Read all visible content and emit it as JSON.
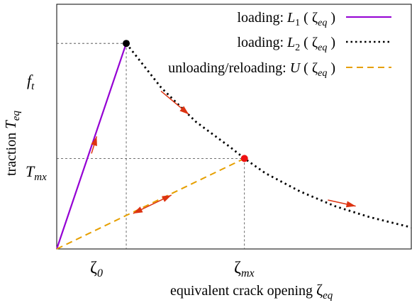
{
  "chart_data": {
    "type": "line",
    "xlabel": "equivalent crack opening",
    "xlabel_symbol": "ζ",
    "xlabel_sub": "eq",
    "ylabel": "traction",
    "ylabel_symbol": "T",
    "ylabel_sub": "eq",
    "x_ticks": [
      {
        "name": "zeta0",
        "x": 0.2,
        "sym": "ζ",
        "sub": "0"
      },
      {
        "name": "zetamx",
        "x": 0.54,
        "sym": "ζ",
        "sub": "mx"
      }
    ],
    "y_ticks": [
      {
        "name": "ft",
        "y": 0.84,
        "sym": "f",
        "sub": "t"
      },
      {
        "name": "tmx",
        "y": 0.37,
        "sym": "T",
        "sub": "mx"
      }
    ],
    "xlim": [
      0,
      1.02
    ],
    "ylim": [
      0,
      1.0
    ],
    "grid": false,
    "legend_position": "top-right",
    "series": [
      {
        "name": "loading: L1 ( ζeq )",
        "label_text": "loading: ",
        "sym": "L",
        "idx": "1",
        "arg": "ζ",
        "arg_sub": "eq",
        "style": "solid",
        "color": "#9400d3",
        "points": [
          [
            0,
            0
          ],
          [
            0.2,
            0.84
          ]
        ]
      },
      {
        "name": "loading: L2 ( ζeq )",
        "label_text": "loading: ",
        "sym": "L",
        "idx": "2",
        "arg": "ζ",
        "arg_sub": "eq",
        "style": "dotted",
        "color": "#000000",
        "points": [
          [
            0.2,
            0.84
          ],
          [
            0.3,
            0.66
          ],
          [
            0.4,
            0.52
          ],
          [
            0.5,
            0.415
          ],
          [
            0.54,
            0.37
          ],
          [
            0.6,
            0.31
          ],
          [
            0.7,
            0.235
          ],
          [
            0.8,
            0.175
          ],
          [
            0.9,
            0.13
          ],
          [
            1.0,
            0.095
          ],
          [
            1.02,
            0.088
          ]
        ]
      },
      {
        "name": "unloading/reloading: U ( ζeq )",
        "label_text": "unloading/reloading: ",
        "sym": "U",
        "idx": "",
        "arg": "ζ",
        "arg_sub": "eq",
        "style": "dashed",
        "color": "#e69f00",
        "points": [
          [
            0,
            0
          ],
          [
            0.54,
            0.37
          ]
        ]
      }
    ],
    "points": [
      {
        "name": "peak-point",
        "x": 0.2,
        "y": 0.84,
        "color": "#000000"
      },
      {
        "name": "max-opening-point",
        "x": 0.54,
        "y": 0.37,
        "color": "#ee1111"
      }
    ],
    "arrows": [
      {
        "name": "arrow-loading-linear",
        "from": [
          0.1,
          0.39
        ],
        "to": [
          0.115,
          0.46
        ],
        "color": "#dd3311",
        "both": false
      },
      {
        "name": "arrow-softening-1",
        "from": [
          0.3,
          0.645
        ],
        "to": [
          0.38,
          0.55
        ],
        "color": "#dd3311",
        "both": false
      },
      {
        "name": "arrow-unload-reload",
        "from": [
          0.22,
          0.145
        ],
        "to": [
          0.33,
          0.22
        ],
        "color": "#dd3311",
        "both": true
      },
      {
        "name": "arrow-softening-2",
        "from": [
          0.78,
          0.2
        ],
        "to": [
          0.86,
          0.175
        ],
        "color": "#dd3311",
        "both": false
      }
    ]
  }
}
